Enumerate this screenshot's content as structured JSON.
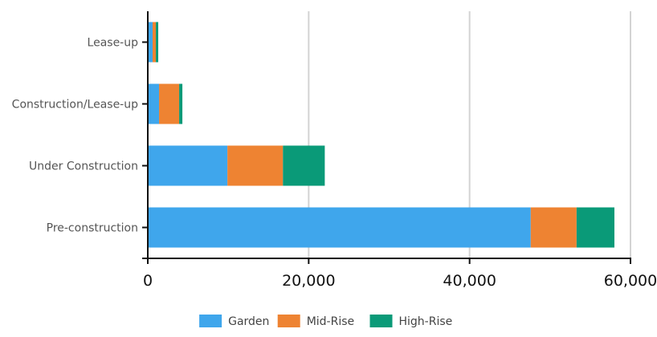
{
  "chart_data": {
    "type": "bar",
    "orientation": "horizontal",
    "stacked": true,
    "categories": [
      "Lease-up",
      "Construction/Lease-up",
      "Under Construction",
      "Pre-construction"
    ],
    "series": [
      {
        "name": "Garden",
        "values": [
          600,
          1400,
          9900,
          47600
        ],
        "color": "#3fa6ec"
      },
      {
        "name": "Mid-Rise",
        "values": [
          400,
          2500,
          6900,
          5700
        ],
        "color": "#ee8332"
      },
      {
        "name": "High-Rise",
        "values": [
          300,
          400,
          5200,
          4700
        ],
        "color": "#0a9a78"
      }
    ],
    "xlim": [
      0,
      60000
    ],
    "xticks": [
      0,
      20000,
      40000,
      60000
    ],
    "xtick_labels": [
      "0",
      "20,000",
      "40,000",
      "60,000"
    ],
    "grid": "vertical",
    "legend_position": "bottom-center",
    "title": "",
    "xlabel": "",
    "ylabel": ""
  }
}
